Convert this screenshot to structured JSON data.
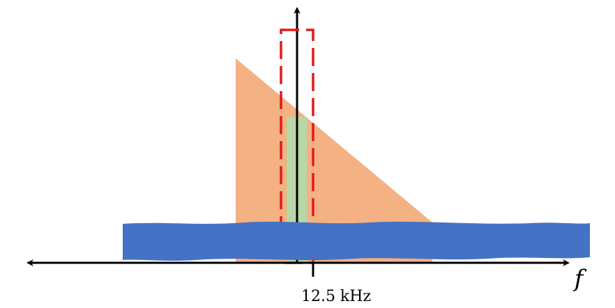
{
  "labels": {
    "center_frequency": "12.5 kHz",
    "axis_variable": "f"
  },
  "colors": {
    "triangle_fill": "#F4B183",
    "green_band_fill": "#B7D7A8",
    "blue_band_fill": "#4472C4",
    "filter_outline": "#E31A1C",
    "axis_color": "#000000"
  }
}
